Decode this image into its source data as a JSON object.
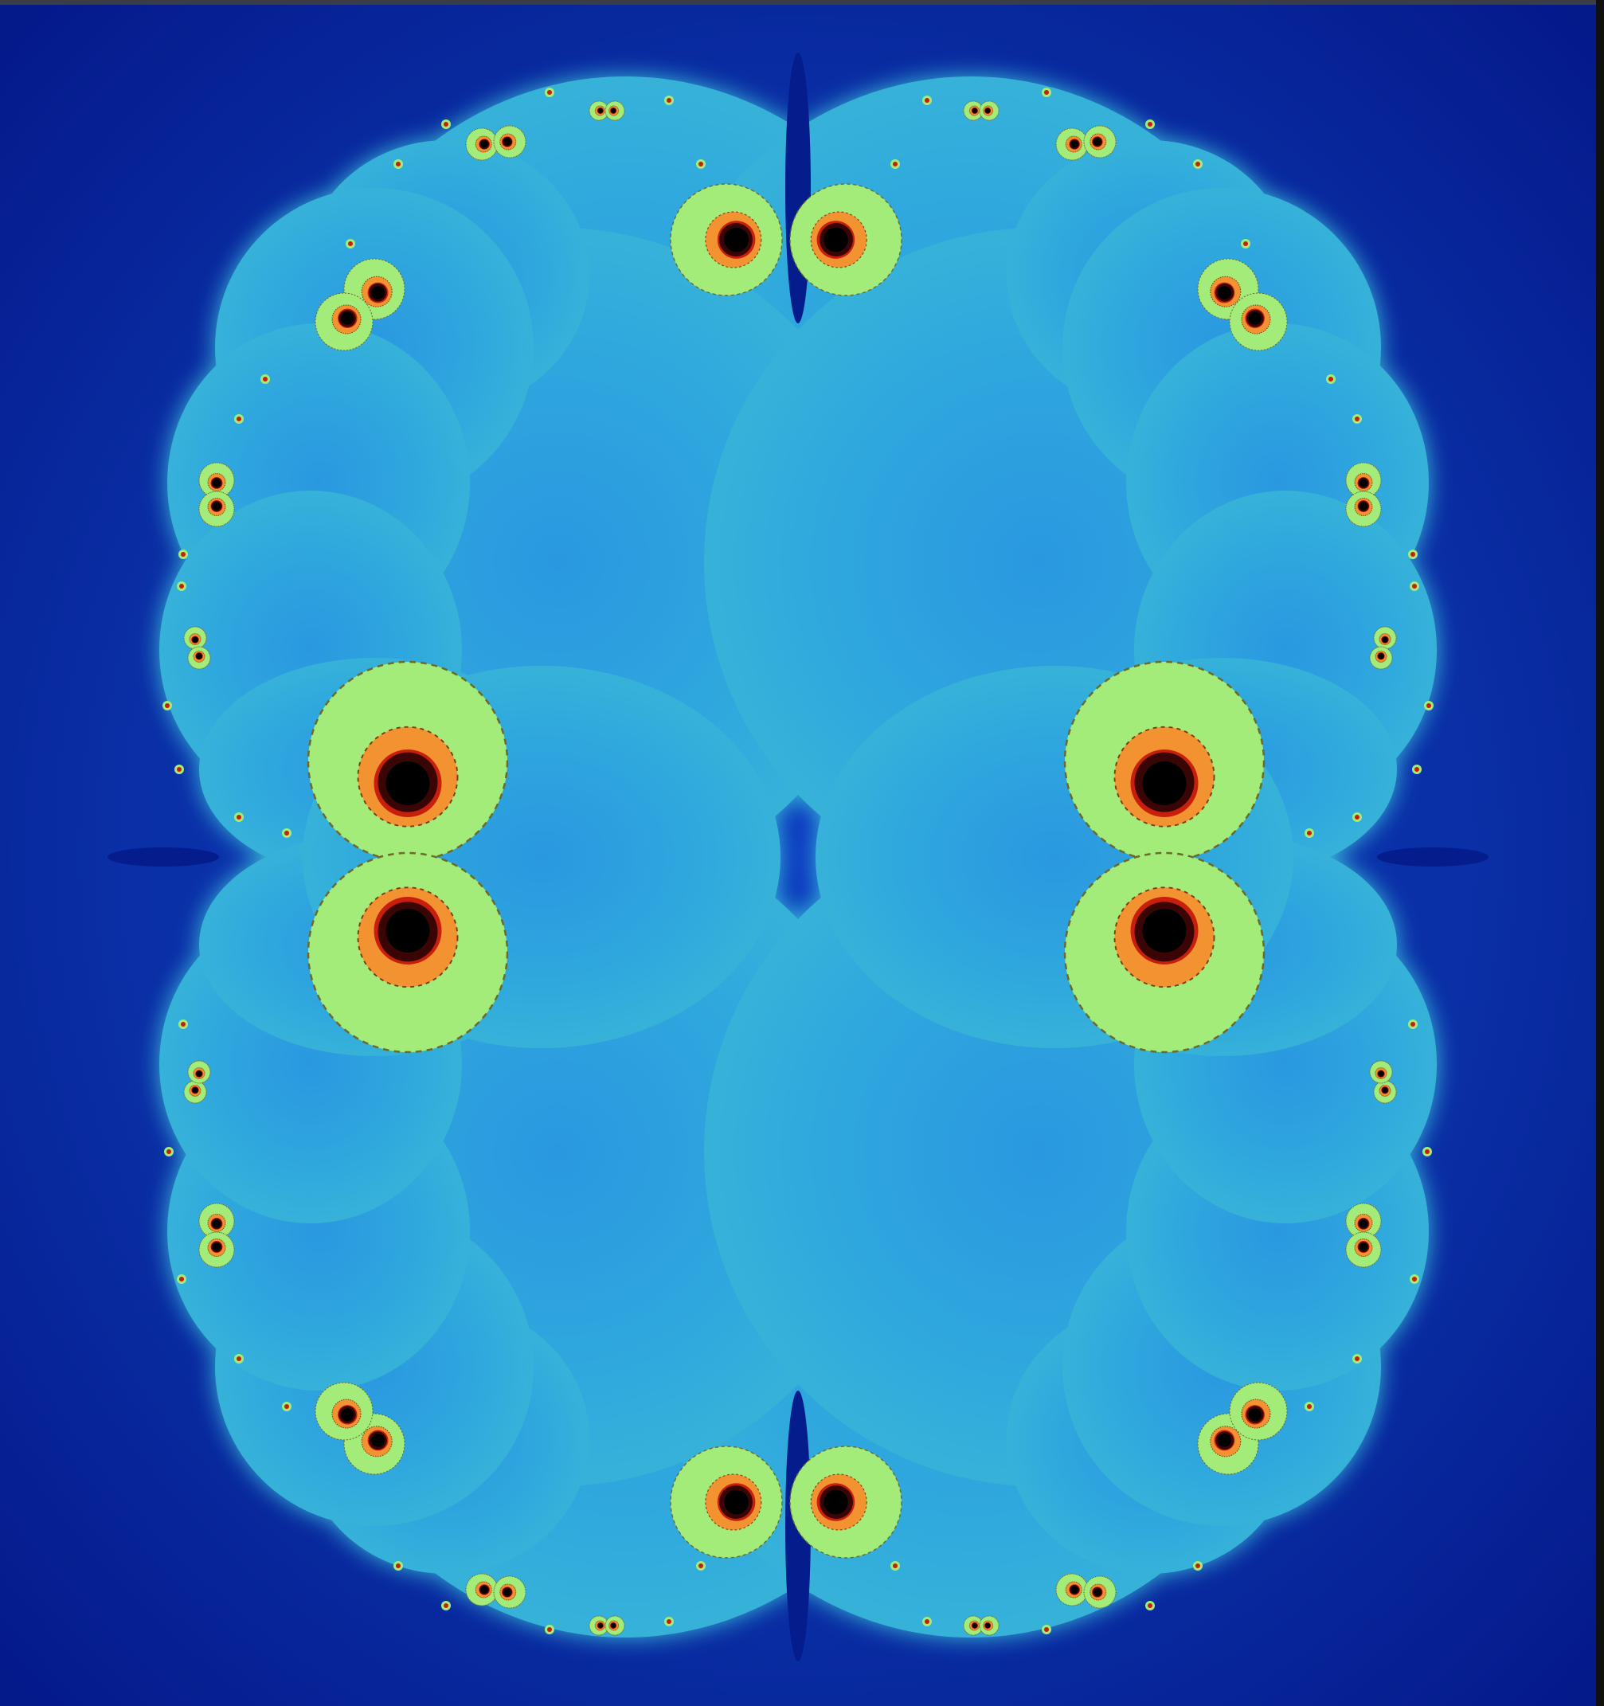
{
  "image": {
    "subject": "julia-set-fractal",
    "colors": {
      "background_center": "#0a36b8",
      "background_edge": "#041c8c",
      "body_outer": "#39b8d8",
      "body_inner": "#2b9fe0",
      "bulb_green": "#a3ec7a",
      "bulb_orange": "#f29230",
      "bulb_red": "#c81e0c",
      "core_dark": "#3a0605",
      "core_black": "#000000",
      "title_bar": "#3a3d46"
    }
  }
}
